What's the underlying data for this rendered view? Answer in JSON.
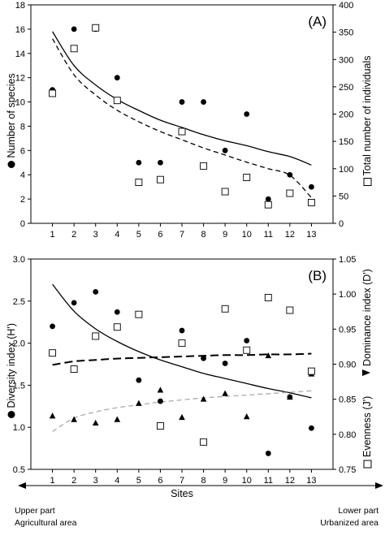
{
  "chart_data": [
    {
      "type": "scatter",
      "panel_label": "(A)",
      "x": [
        1,
        2,
        3,
        4,
        5,
        6,
        7,
        8,
        9,
        10,
        11,
        12,
        13
      ],
      "xlim": [
        0,
        14
      ],
      "x_ticks": [
        "1",
        "2",
        "3",
        "4",
        "5",
        "6",
        "7",
        "8",
        "9",
        "10",
        "11",
        "12",
        "13"
      ],
      "ylabel_left": "Number of species",
      "ylabel_right": "Total number of individuals",
      "ylim_left": [
        0,
        18
      ],
      "ylim_right": [
        0,
        400
      ],
      "y_ticks_left": [
        "0",
        "2",
        "4",
        "6",
        "8",
        "10",
        "12",
        "14",
        "16",
        "18"
      ],
      "y_ticks_right": [
        "0",
        "50",
        "100",
        "150",
        "200",
        "250",
        "300",
        "350",
        "400"
      ],
      "series": [
        {
          "axis": "left",
          "marker": "filled-circle",
          "name": "Number of species",
          "values": [
            11,
            16,
            16,
            12,
            5,
            5,
            10,
            10,
            6,
            9,
            2,
            4,
            3
          ]
        },
        {
          "axis": "right",
          "marker": "open-square",
          "name": "Total number of individuals",
          "values": [
            238,
            320,
            358,
            225,
            75,
            80,
            168,
            105,
            58,
            84,
            34,
            55,
            38
          ]
        }
      ],
      "trendlines": [
        {
          "axis": "left",
          "style": "solid",
          "values": [
            15.8,
            13.0,
            11.4,
            10.2,
            9.3,
            8.5,
            7.9,
            7.3,
            6.8,
            6.4,
            5.9,
            5.5,
            4.8
          ]
        },
        {
          "axis": "right",
          "style": "dashed",
          "values": [
            338,
            272,
            235,
            207,
            186,
            168,
            153,
            138,
            125,
            112,
            100,
            88,
            47
          ]
        }
      ],
      "grid": false
    },
    {
      "type": "scatter",
      "panel_label": "(B)",
      "x": [
        1,
        2,
        3,
        4,
        5,
        6,
        7,
        8,
        9,
        10,
        11,
        12,
        13
      ],
      "xlim": [
        0,
        14
      ],
      "x_ticks": [
        "1",
        "2",
        "3",
        "4",
        "5",
        "6",
        "7",
        "8",
        "9",
        "10",
        "11",
        "12",
        "13"
      ],
      "xlabel": "Sites",
      "ylabel_left": "Diversity index (H')",
      "ylabel_right_upper": "Dominance index (D')",
      "ylabel_right_lower": "Evenness (J')",
      "ylim_left": [
        0.5,
        3.0
      ],
      "ylim_right": [
        0.75,
        1.05
      ],
      "y_ticks_left": [
        "0.5",
        "1.0",
        "1.5",
        "2.0",
        "2.5",
        "3.0"
      ],
      "y_ticks_right": [
        "0.75",
        "0.80",
        "0.85",
        "0.90",
        "0.95",
        "1.00",
        "1.05"
      ],
      "series": [
        {
          "axis": "left",
          "marker": "filled-circle",
          "name": "Diversity index (H')",
          "values": [
            2.2,
            2.48,
            2.61,
            2.37,
            1.56,
            1.31,
            2.15,
            1.82,
            1.76,
            2.03,
            0.69,
            1.36,
            0.99
          ]
        },
        {
          "axis": "right",
          "marker": "filled-triangle",
          "name": "Dominance index (D')",
          "values": [
            0.826,
            0.821,
            0.816,
            0.821,
            0.844,
            0.863,
            0.824,
            0.85,
            0.858,
            0.825,
            0.912,
            0.853,
            0.886
          ]
        },
        {
          "axis": "right",
          "marker": "open-square",
          "name": "Evenness (J')",
          "values": [
            0.916,
            0.893,
            0.94,
            0.953,
            0.971,
            0.812,
            0.93,
            0.789,
            0.979,
            0.92,
            0.995,
            0.977,
            0.89
          ]
        }
      ],
      "trendlines": [
        {
          "axis": "left",
          "style": "solid",
          "color": "#000000",
          "values": [
            2.7,
            2.38,
            2.17,
            2.02,
            1.9,
            1.8,
            1.72,
            1.64,
            1.58,
            1.52,
            1.46,
            1.41,
            1.35
          ]
        },
        {
          "axis": "right",
          "style": "dashed",
          "color": "#000000",
          "values": [
            0.899,
            0.904,
            0.906,
            0.908,
            0.909,
            0.91,
            0.911,
            0.912,
            0.913,
            0.913,
            0.914,
            0.914,
            0.915
          ]
        },
        {
          "axis": "right",
          "style": "dashed",
          "color": "#aaaaaa",
          "values": [
            0.804,
            0.823,
            0.832,
            0.838,
            0.842,
            0.846,
            0.849,
            0.852,
            0.854,
            0.856,
            0.858,
            0.86,
            0.862
          ]
        }
      ],
      "grid": false
    }
  ],
  "footer": {
    "left_line1": "Upper part",
    "left_line2": "Agricultural area",
    "right_line1": "Lower part",
    "right_line2": "Urbanized area"
  }
}
